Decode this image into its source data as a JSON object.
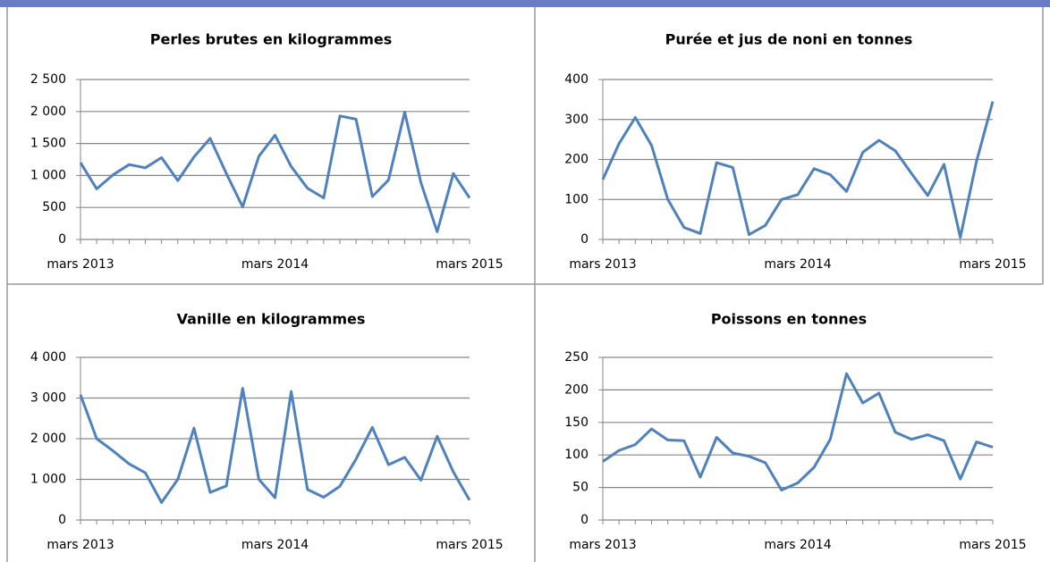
{
  "chart_data": [
    {
      "type": "line",
      "title": "Perles brutes en kilogrammes",
      "categories": [
        "mars 2013",
        null,
        null,
        null,
        null,
        null,
        null,
        null,
        null,
        null,
        null,
        null,
        "mars 2014",
        null,
        null,
        null,
        null,
        null,
        null,
        null,
        null,
        null,
        null,
        null,
        "mars 2015"
      ],
      "series": [
        {
          "name": "Perles brutes",
          "color": "#4f81bd",
          "values": [
            1200,
            790,
            1010,
            1170,
            1120,
            1280,
            920,
            1290,
            1580,
            1030,
            510,
            1300,
            1630,
            1140,
            800,
            650,
            1930,
            1880,
            670,
            930,
            1990,
            890,
            120,
            1030,
            650
          ]
        }
      ],
      "ylim": [
        0,
        2500
      ],
      "yticks": [
        0,
        500,
        {
          "value": 1000,
          "label": "1 000"
        },
        {
          "value": 1500,
          "label": "1 500"
        },
        {
          "value": 2000,
          "label": "2 000"
        },
        {
          "value": 2500,
          "label": "2 500"
        }
      ],
      "grid": true
    },
    {
      "type": "line",
      "title": "Purée et jus de noni en tonnes",
      "categories": [
        "mars 2013",
        null,
        null,
        null,
        null,
        null,
        null,
        null,
        null,
        null,
        null,
        null,
        "mars 2014",
        null,
        null,
        null,
        null,
        null,
        null,
        null,
        null,
        null,
        null,
        null,
        "mars 2015"
      ],
      "series": [
        {
          "name": "Purée et jus de noni",
          "color": "#4f81bd",
          "values": [
            150,
            240,
            305,
            235,
            100,
            30,
            15,
            192,
            180,
            12,
            35,
            100,
            112,
            177,
            162,
            120,
            218,
            248,
            222,
            165,
            110,
            188,
            5,
            195,
            345
          ]
        }
      ],
      "ylim": [
        0,
        400
      ],
      "yticks": [
        0,
        100,
        200,
        300,
        400
      ],
      "grid": true
    },
    {
      "type": "line",
      "title": "Vanille en kilogrammes",
      "categories": [
        "mars 2013",
        null,
        null,
        null,
        null,
        null,
        null,
        null,
        null,
        null,
        null,
        null,
        "mars 2014",
        null,
        null,
        null,
        null,
        null,
        null,
        null,
        null,
        null,
        null,
        null,
        "mars 2015"
      ],
      "series": [
        {
          "name": "Vanille",
          "color": "#4f81bd",
          "values": [
            3080,
            2000,
            1700,
            1380,
            1160,
            430,
            1000,
            2260,
            680,
            840,
            3240,
            1000,
            550,
            3160,
            750,
            560,
            830,
            1500,
            2280,
            1360,
            1540,
            980,
            2060,
            1180,
            490
          ]
        }
      ],
      "ylim": [
        0,
        4000
      ],
      "yticks": [
        0,
        {
          "value": 1000,
          "label": "1 000"
        },
        {
          "value": 2000,
          "label": "2 000"
        },
        {
          "value": 3000,
          "label": "3 000"
        },
        {
          "value": 4000,
          "label": "4 000"
        }
      ],
      "grid": true
    },
    {
      "type": "line",
      "title": "Poissons en tonnes",
      "categories": [
        "mars 2013",
        null,
        null,
        null,
        null,
        null,
        null,
        null,
        null,
        null,
        null,
        null,
        "mars 2014",
        null,
        null,
        null,
        null,
        null,
        null,
        null,
        null,
        null,
        null,
        null,
        "mars 2015"
      ],
      "series": [
        {
          "name": "Poissons",
          "color": "#4f81bd",
          "values": [
            90,
            107,
            116,
            140,
            123,
            122,
            66,
            127,
            103,
            98,
            88,
            46,
            57,
            81,
            124,
            225,
            180,
            195,
            135,
            124,
            131,
            122,
            63,
            120,
            112
          ]
        }
      ],
      "ylim": [
        0,
        250
      ],
      "yticks": [
        0,
        50,
        100,
        150,
        200,
        250
      ],
      "grid": true
    }
  ]
}
